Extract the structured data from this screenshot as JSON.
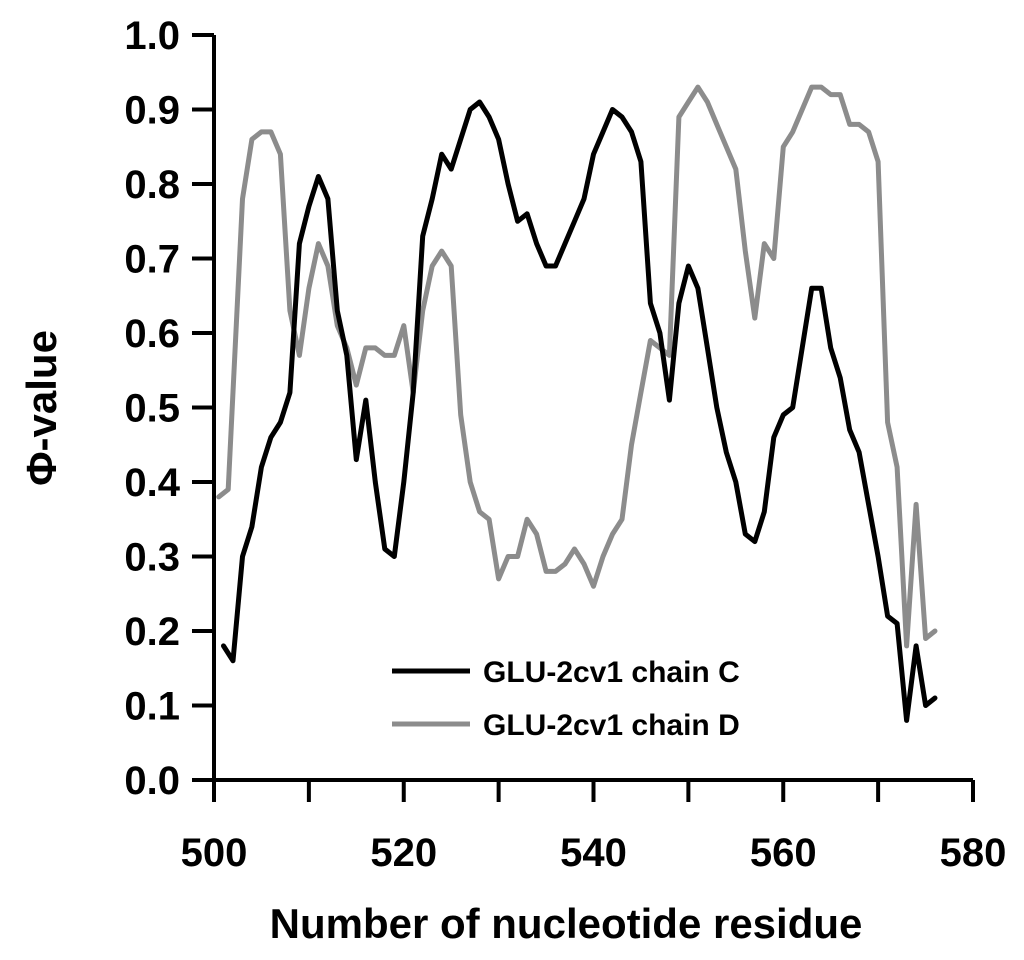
{
  "chart_data": {
    "type": "line",
    "title": "",
    "xlabel": "Number of nucleotide residue",
    "ylabel": "Φ-value",
    "xlim": [
      500,
      580
    ],
    "ylim": [
      0,
      1
    ],
    "x_ticks": [
      500,
      520,
      540,
      560,
      580
    ],
    "y_ticks": [
      "0.0",
      "0.1",
      "0.2",
      "0.3",
      "0.4",
      "0.5",
      "0.6",
      "0.7",
      "0.8",
      "0.9",
      "1.0"
    ],
    "grid": false,
    "legend_position": "bottom-right",
    "series": [
      {
        "name": "GLU-2cv1 chain C",
        "color": "#000000",
        "points": [
          [
            501,
            0.18
          ],
          [
            502,
            0.16
          ],
          [
            503,
            0.3
          ],
          [
            504,
            0.34
          ],
          [
            505,
            0.42
          ],
          [
            506,
            0.46
          ],
          [
            507,
            0.48
          ],
          [
            508,
            0.52
          ],
          [
            509,
            0.72
          ],
          [
            510,
            0.77
          ],
          [
            511,
            0.81
          ],
          [
            512,
            0.78
          ],
          [
            513,
            0.63
          ],
          [
            514,
            0.57
          ],
          [
            515,
            0.43
          ],
          [
            516,
            0.51
          ],
          [
            517,
            0.4
          ],
          [
            518,
            0.31
          ],
          [
            519,
            0.3
          ],
          [
            520,
            0.4
          ],
          [
            521,
            0.52
          ],
          [
            522,
            0.73
          ],
          [
            523,
            0.78
          ],
          [
            524,
            0.84
          ],
          [
            525,
            0.82
          ],
          [
            526,
            0.86
          ],
          [
            527,
            0.9
          ],
          [
            528,
            0.91
          ],
          [
            529,
            0.89
          ],
          [
            530,
            0.86
          ],
          [
            531,
            0.8
          ],
          [
            532,
            0.75
          ],
          [
            533,
            0.76
          ],
          [
            534,
            0.72
          ],
          [
            535,
            0.69
          ],
          [
            536,
            0.69
          ],
          [
            537,
            0.72
          ],
          [
            538,
            0.75
          ],
          [
            539,
            0.78
          ],
          [
            540,
            0.84
          ],
          [
            541,
            0.87
          ],
          [
            542,
            0.9
          ],
          [
            543,
            0.89
          ],
          [
            544,
            0.87
          ],
          [
            545,
            0.83
          ],
          [
            546,
            0.64
          ],
          [
            547,
            0.6
          ],
          [
            548,
            0.51
          ],
          [
            549,
            0.64
          ],
          [
            550,
            0.69
          ],
          [
            551,
            0.66
          ],
          [
            552,
            0.58
          ],
          [
            553,
            0.5
          ],
          [
            554,
            0.44
          ],
          [
            555,
            0.4
          ],
          [
            556,
            0.33
          ],
          [
            557,
            0.32
          ],
          [
            558,
            0.36
          ],
          [
            559,
            0.46
          ],
          [
            560,
            0.49
          ],
          [
            561,
            0.5
          ],
          [
            562,
            0.58
          ],
          [
            563,
            0.66
          ],
          [
            564,
            0.66
          ],
          [
            565,
            0.58
          ],
          [
            566,
            0.54
          ],
          [
            567,
            0.47
          ],
          [
            568,
            0.44
          ],
          [
            569,
            0.37
          ],
          [
            570,
            0.3
          ],
          [
            571,
            0.22
          ],
          [
            572,
            0.21
          ],
          [
            573,
            0.08
          ],
          [
            574,
            0.18
          ],
          [
            575,
            0.1
          ],
          [
            576,
            0.11
          ]
        ]
      },
      {
        "name": "GLU-2cv1 chain D",
        "color": "#8c8c8c",
        "points": [
          [
            500.5,
            0.38
          ],
          [
            501.5,
            0.39
          ],
          [
            503,
            0.78
          ],
          [
            504,
            0.86
          ],
          [
            505,
            0.87
          ],
          [
            506,
            0.87
          ],
          [
            507,
            0.84
          ],
          [
            508,
            0.63
          ],
          [
            509,
            0.57
          ],
          [
            510,
            0.66
          ],
          [
            511,
            0.72
          ],
          [
            512,
            0.69
          ],
          [
            513,
            0.61
          ],
          [
            514,
            0.58
          ],
          [
            515,
            0.53
          ],
          [
            516,
            0.58
          ],
          [
            517,
            0.58
          ],
          [
            518,
            0.57
          ],
          [
            519,
            0.57
          ],
          [
            520,
            0.61
          ],
          [
            521,
            0.52
          ],
          [
            522,
            0.63
          ],
          [
            523,
            0.69
          ],
          [
            524,
            0.71
          ],
          [
            525,
            0.69
          ],
          [
            526,
            0.49
          ],
          [
            527,
            0.4
          ],
          [
            528,
            0.36
          ],
          [
            529,
            0.35
          ],
          [
            530,
            0.27
          ],
          [
            531,
            0.3
          ],
          [
            532,
            0.3
          ],
          [
            533,
            0.35
          ],
          [
            534,
            0.33
          ],
          [
            535,
            0.28
          ],
          [
            536,
            0.28
          ],
          [
            537,
            0.29
          ],
          [
            538,
            0.31
          ],
          [
            539,
            0.29
          ],
          [
            540,
            0.26
          ],
          [
            541,
            0.3
          ],
          [
            542,
            0.33
          ],
          [
            543,
            0.35
          ],
          [
            544,
            0.45
          ],
          [
            545,
            0.52
          ],
          [
            546,
            0.59
          ],
          [
            547,
            0.58
          ],
          [
            548,
            0.57
          ],
          [
            549,
            0.89
          ],
          [
            550,
            0.91
          ],
          [
            551,
            0.93
          ],
          [
            552,
            0.91
          ],
          [
            553,
            0.88
          ],
          [
            554,
            0.85
          ],
          [
            555,
            0.82
          ],
          [
            556,
            0.71
          ],
          [
            557,
            0.62
          ],
          [
            558,
            0.72
          ],
          [
            559,
            0.7
          ],
          [
            560,
            0.85
          ],
          [
            561,
            0.87
          ],
          [
            562,
            0.9
          ],
          [
            563,
            0.93
          ],
          [
            564,
            0.93
          ],
          [
            565,
            0.92
          ],
          [
            566,
            0.92
          ],
          [
            567,
            0.88
          ],
          [
            568,
            0.88
          ],
          [
            569,
            0.87
          ],
          [
            570,
            0.83
          ],
          [
            571,
            0.48
          ],
          [
            572,
            0.42
          ],
          [
            573,
            0.18
          ],
          [
            574,
            0.37
          ],
          [
            575,
            0.19
          ],
          [
            576,
            0.2
          ]
        ]
      }
    ]
  }
}
